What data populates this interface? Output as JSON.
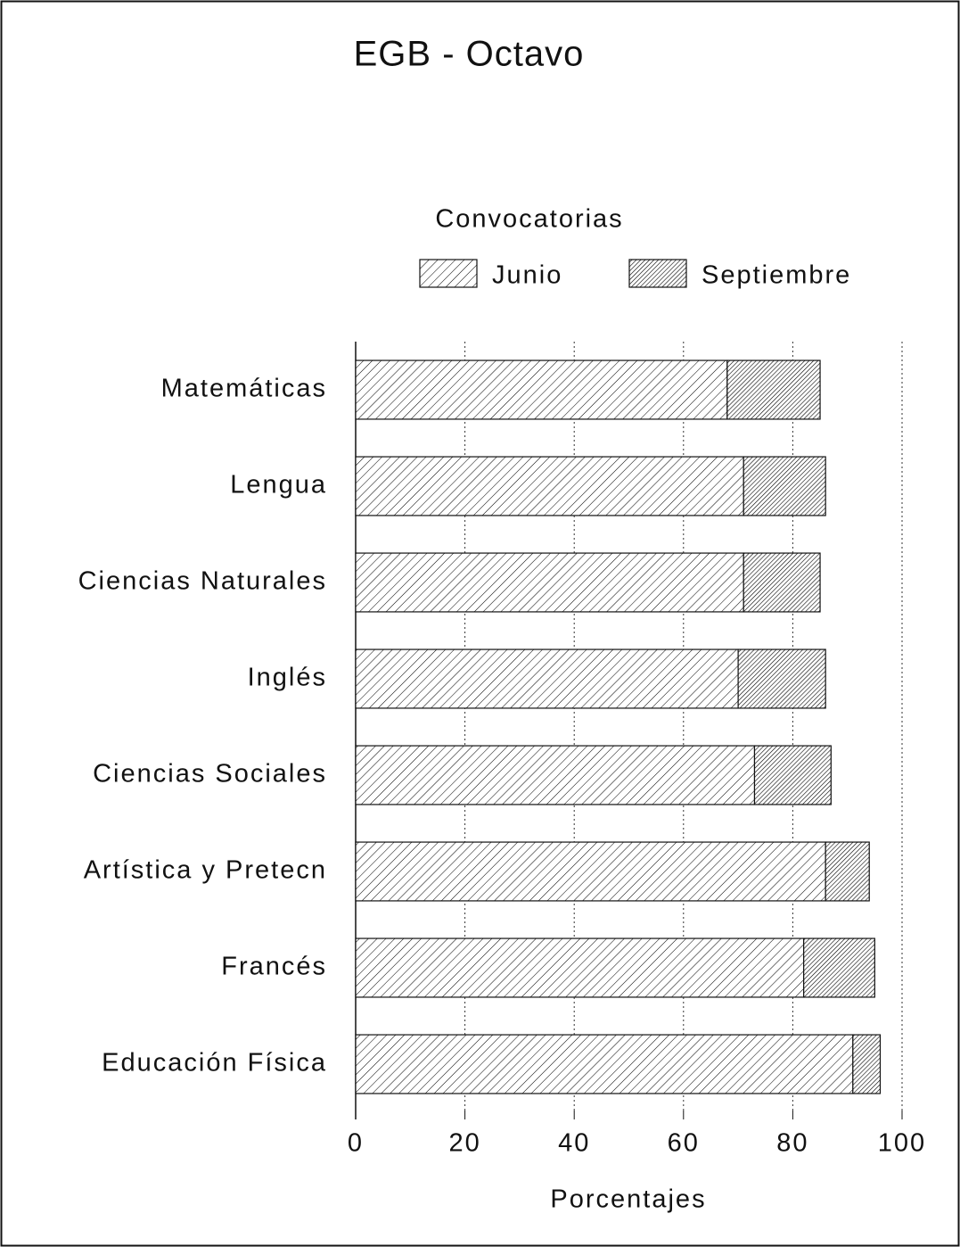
{
  "chart_data": {
    "type": "bar",
    "orientation": "horizontal",
    "stacked": true,
    "title": "EGB - Octavo",
    "legend_title": "Convocatorias",
    "xlabel": "Porcentajes",
    "categories": [
      "Matemáticas",
      "Lengua",
      "Ciencias Naturales",
      "Inglés",
      "Ciencias Sociales",
      "Artística y Pretecn",
      "Francés",
      "Educación Física"
    ],
    "series": [
      {
        "name": "Junio",
        "color": "#000000",
        "values": [
          68,
          71,
          71,
          70,
          73,
          86,
          82,
          91
        ]
      },
      {
        "name": "Septiembre",
        "color": "#000000",
        "values": [
          17,
          15,
          14,
          16,
          14,
          8,
          13,
          5
        ]
      }
    ],
    "xlim": [
      0,
      100
    ],
    "xticks": [
      0,
      20,
      40,
      60,
      80,
      100
    ],
    "grid": true
  }
}
